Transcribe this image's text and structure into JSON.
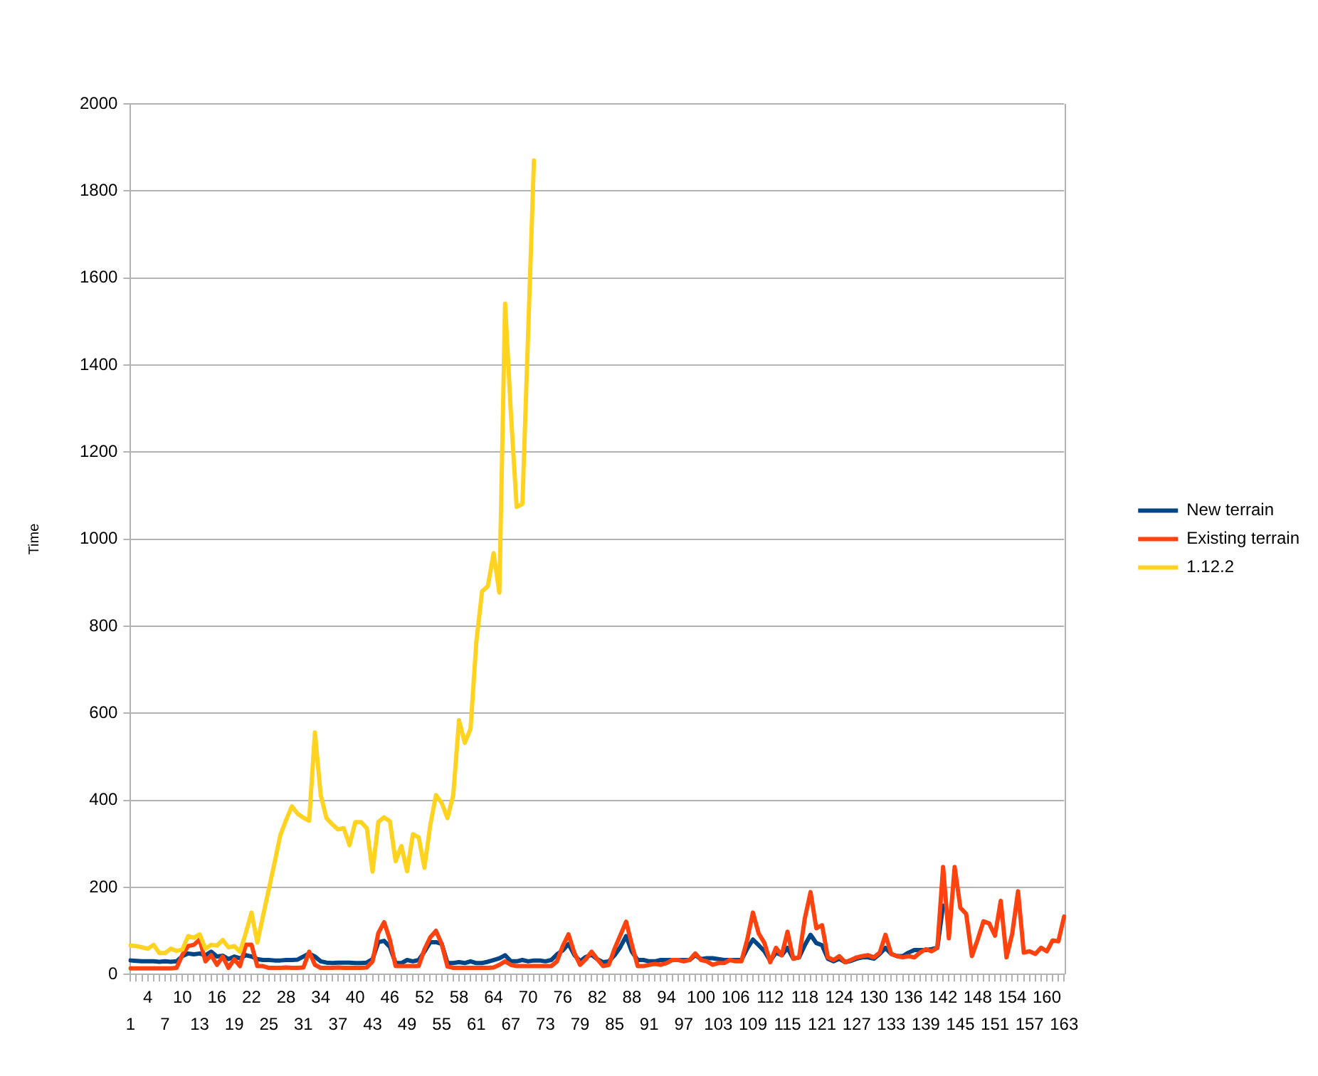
{
  "chart_data": {
    "type": "line",
    "ylabel": "Time",
    "categories": [
      "1",
      null,
      null,
      "4",
      null,
      null,
      "7",
      null,
      null,
      "10",
      null,
      null,
      "13",
      null,
      null,
      "16",
      null,
      null,
      "19",
      null,
      null,
      "22",
      null,
      null,
      "25",
      null,
      null,
      "28",
      null,
      null,
      "31",
      null,
      null,
      "34",
      null,
      null,
      "37",
      null,
      null,
      "40",
      null,
      null,
      "43",
      null,
      null,
      "46",
      null,
      null,
      "49",
      null,
      null,
      "52",
      null,
      null,
      "55",
      null,
      null,
      "58",
      null,
      null,
      "61",
      null,
      null,
      "64",
      null,
      null,
      "67",
      null,
      null,
      "70",
      null,
      null,
      "73",
      null,
      null,
      "76",
      null,
      null,
      "79",
      null,
      null,
      "82",
      null,
      null,
      "85",
      null,
      null,
      "88",
      null,
      null,
      "91",
      null,
      null,
      "94",
      null,
      null,
      "97",
      null,
      null,
      "100",
      null,
      null,
      "103",
      null,
      null,
      "106",
      null,
      null,
      "109",
      null,
      null,
      "112",
      null,
      null,
      "115",
      null,
      null,
      "118",
      null,
      null,
      "121",
      null,
      null,
      "124",
      null,
      null,
      "127",
      null,
      null,
      "130",
      null,
      null,
      "133",
      null,
      null,
      "136",
      null,
      null,
      "139",
      null,
      null,
      "142",
      null,
      null,
      "145",
      null,
      null,
      "148",
      null,
      null,
      "151",
      null,
      null,
      "154",
      null,
      null,
      "157",
      null,
      null,
      "160",
      null,
      null,
      "163"
    ],
    "series": [
      {
        "name": "New terrain",
        "color": "#004586",
        "values": [
          32,
          31,
          30,
          30,
          30,
          29,
          30,
          29,
          30,
          42,
          48,
          46,
          48,
          44,
          52,
          41,
          43,
          35,
          41,
          37,
          44,
          41,
          35,
          33,
          33,
          32,
          32,
          33,
          33,
          34,
          41,
          48,
          41,
          30,
          27,
          26,
          27,
          27,
          27,
          26,
          26,
          27,
          35,
          74,
          77,
          63,
          26,
          26,
          33,
          30,
          33,
          52,
          74,
          74,
          70,
          26,
          26,
          28,
          26,
          30,
          26,
          26,
          29,
          33,
          37,
          44,
          30,
          30,
          33,
          30,
          32,
          32,
          30,
          33,
          46,
          55,
          70,
          45,
          30,
          40,
          45,
          35,
          28,
          30,
          44,
          63,
          88,
          52,
          33,
          33,
          30,
          30,
          33,
          33,
          33,
          33,
          33,
          33,
          44,
          35,
          37,
          37,
          35,
          33,
          33,
          33,
          33,
          59,
          80,
          67,
          53,
          31,
          50,
          44,
          61,
          36,
          39,
          67,
          91,
          72,
          67,
          36,
          30,
          36,
          28,
          31,
          36,
          39,
          39,
          36,
          47,
          61,
          47,
          42,
          42,
          50,
          56,
          56,
          56,
          58,
          61,
          158,
          null,
          null,
          null,
          null,
          null,
          null,
          null,
          null,
          null,
          null,
          null,
          null,
          null,
          null,
          null,
          null,
          null,
          null,
          null,
          null,
          null
        ]
      },
      {
        "name": "Existing terrain",
        "color": "#ff420e",
        "values": [
          14,
          14,
          14,
          14,
          14,
          14,
          14,
          14,
          15,
          45,
          65,
          68,
          80,
          30,
          44,
          22,
          41,
          15,
          35,
          19,
          68,
          68,
          19,
          19,
          15,
          15,
          15,
          16,
          15,
          15,
          16,
          52,
          22,
          15,
          15,
          15,
          16,
          15,
          15,
          15,
          15,
          16,
          30,
          95,
          120,
          80,
          19,
          19,
          19,
          19,
          19,
          57,
          85,
          100,
          70,
          18,
          15,
          15,
          15,
          15,
          15,
          15,
          15,
          16,
          22,
          30,
          22,
          19,
          19,
          19,
          19,
          19,
          19,
          19,
          30,
          65,
          92,
          50,
          22,
          35,
          52,
          35,
          19,
          22,
          59,
          90,
          121,
          68,
          19,
          19,
          22,
          24,
          22,
          26,
          33,
          33,
          30,
          33,
          48,
          33,
          30,
          22,
          26,
          26,
          33,
          30,
          30,
          79,
          142,
          94,
          72,
          28,
          61,
          44,
          98,
          36,
          39,
          128,
          189,
          106,
          113,
          39,
          33,
          42,
          28,
          33,
          39,
          42,
          44,
          39,
          50,
          91,
          47,
          42,
          39,
          42,
          39,
          50,
          58,
          53,
          61,
          247,
          83,
          247,
          153,
          139,
          42,
          80,
          122,
          117,
          89,
          169,
          39,
          94,
          191,
          50,
          53,
          47,
          61,
          53,
          78,
          76,
          133
        ]
      },
      {
        "name": "1.12.2",
        "color": "#ffd320",
        "values": [
          66,
          65,
          62,
          59,
          68,
          49,
          49,
          59,
          54,
          57,
          88,
          84,
          92,
          59,
          68,
          66,
          79,
          62,
          65,
          52,
          95,
          142,
          73,
          135,
          196,
          257,
          320,
          355,
          386,
          369,
          360,
          353,
          556,
          412,
          359,
          345,
          333,
          336,
          297,
          350,
          350,
          336,
          236,
          350,
          361,
          352,
          260,
          295,
          237,
          322,
          315,
          245,
          342,
          412,
          394,
          359,
          412,
          584,
          532,
          564,
          763,
          880,
          892,
          968,
          877,
          1541,
          1290,
          1074,
          1081,
          1475,
          1870,
          null,
          null,
          null,
          null,
          null,
          null,
          null,
          null,
          null,
          null,
          null,
          null,
          null,
          null,
          null,
          null,
          null,
          null,
          null,
          null,
          null,
          null,
          null,
          null,
          null,
          null,
          null,
          null,
          null,
          null,
          null,
          null,
          null,
          null,
          null,
          null,
          null,
          null,
          null,
          null,
          null,
          null,
          null,
          null,
          null,
          null,
          null,
          null,
          null,
          null,
          null,
          null,
          null,
          null,
          null,
          null,
          null,
          null,
          null,
          null,
          null,
          null,
          null,
          null,
          null,
          null,
          null,
          null,
          null,
          null,
          null,
          null,
          null,
          null,
          null,
          null,
          null,
          null,
          null,
          null,
          null,
          null,
          null,
          null,
          null,
          null,
          null,
          null,
          null,
          null,
          null,
          null
        ]
      }
    ],
    "ylim": [
      0,
      2000
    ],
    "yticks": [
      0,
      200,
      400,
      600,
      800,
      1000,
      1200,
      1400,
      1600,
      1800,
      2000
    ],
    "grid": "y",
    "legend": "right",
    "marker": "none",
    "line_style": "solid"
  }
}
